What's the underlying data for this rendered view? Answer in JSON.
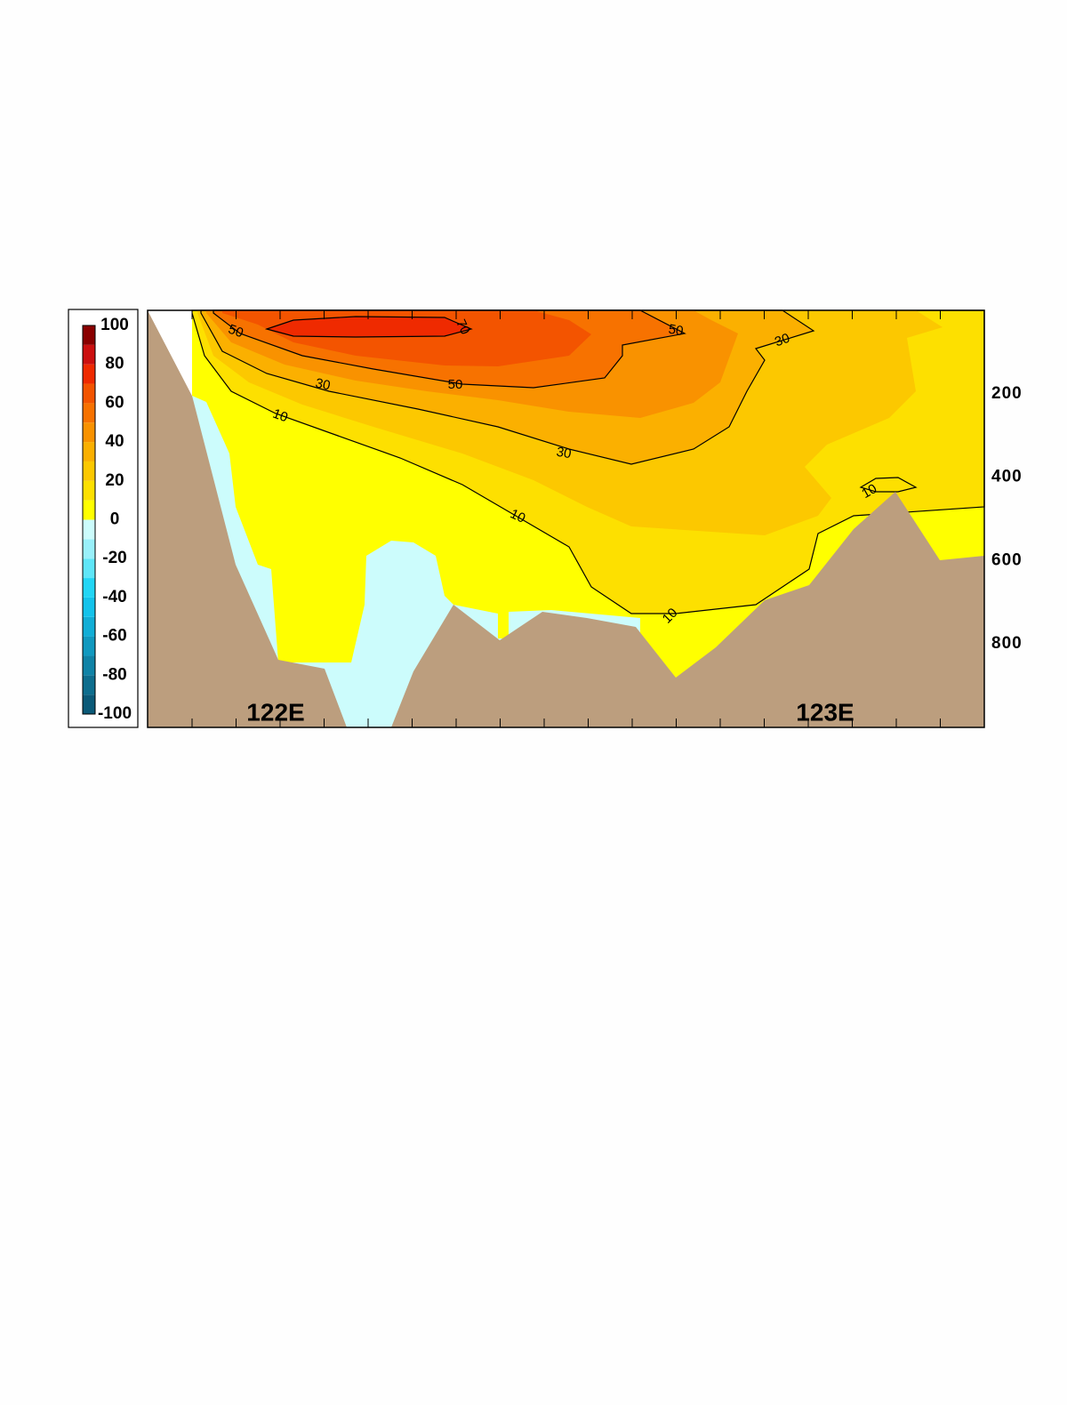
{
  "chart_data": {
    "type": "contour",
    "colorbar": {
      "levels": [
        -100,
        -90,
        -80,
        -70,
        -60,
        -50,
        -40,
        -30,
        -20,
        -10,
        0,
        10,
        20,
        30,
        40,
        50,
        60,
        70,
        80,
        90,
        100
      ],
      "colors": [
        "#0b5a78",
        "#0e6e8e",
        "#1083a6",
        "#1199bf",
        "#12aed6",
        "#14c3eb",
        "#22d6f5",
        "#5fe6f8",
        "#99f0fa",
        "#ccfcfc",
        "#ffff00",
        "#fde000",
        "#fcc800",
        "#fbb000",
        "#f99200",
        "#f77200",
        "#f35400",
        "#ef2a00",
        "#cc1010",
        "#8a0000"
      ],
      "ticks": [
        100,
        80,
        60,
        40,
        20,
        0,
        -20,
        -40,
        -60,
        -80,
        -100
      ]
    },
    "contour_levels": [
      10,
      30,
      50,
      70
    ],
    "x_labels": [
      "122E",
      "123E"
    ],
    "ylim": [
      0,
      1000
    ],
    "y_inverted": true,
    "yticks": [
      200,
      400,
      600,
      800
    ],
    "land_color": "#bc9e7e"
  }
}
